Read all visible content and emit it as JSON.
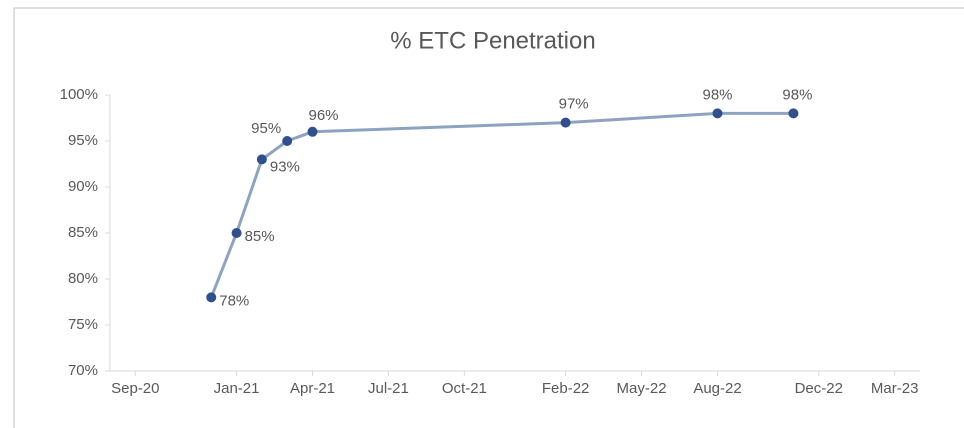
{
  "chart_data": {
    "type": "line",
    "title": "% ETC Penetration",
    "x": [
      "2020-12",
      "2021-01",
      "2021-02",
      "2021-03",
      "2021-04",
      "2022-02",
      "2022-08",
      "2022-11"
    ],
    "series": [
      {
        "name": "% ETC Penetration",
        "color": "#8ea3c2",
        "marker_color": "#2f4f8f",
        "values": [
          78,
          85,
          93,
          95,
          96,
          97,
          98,
          98
        ],
        "value_labels": [
          "78%",
          "85%",
          "93%",
          "95%",
          "96%",
          "97%",
          "98%",
          "98%"
        ]
      }
    ],
    "xlim": [
      "2020-08",
      "2023-04"
    ],
    "xticks": [
      {
        "value": "2020-09",
        "label": "Sep-20"
      },
      {
        "value": "2021-01",
        "label": "Jan-21"
      },
      {
        "value": "2021-04",
        "label": "Apr-21"
      },
      {
        "value": "2021-07",
        "label": "Jul-21"
      },
      {
        "value": "2021-10",
        "label": "Oct-21"
      },
      {
        "value": "2022-02",
        "label": "Feb-22"
      },
      {
        "value": "2022-05",
        "label": "May-22"
      },
      {
        "value": "2022-08",
        "label": "Aug-22"
      },
      {
        "value": "2022-12",
        "label": "Dec-22"
      },
      {
        "value": "2023-03",
        "label": "Mar-23"
      }
    ],
    "ylim": [
      70,
      100
    ],
    "yticks": [
      {
        "value": 70,
        "label": "70%"
      },
      {
        "value": 75,
        "label": "75%"
      },
      {
        "value": 80,
        "label": "80%"
      },
      {
        "value": 85,
        "label": "85%"
      },
      {
        "value": 90,
        "label": "90%"
      },
      {
        "value": 95,
        "label": "95%"
      },
      {
        "value": 100,
        "label": "100%"
      }
    ]
  }
}
